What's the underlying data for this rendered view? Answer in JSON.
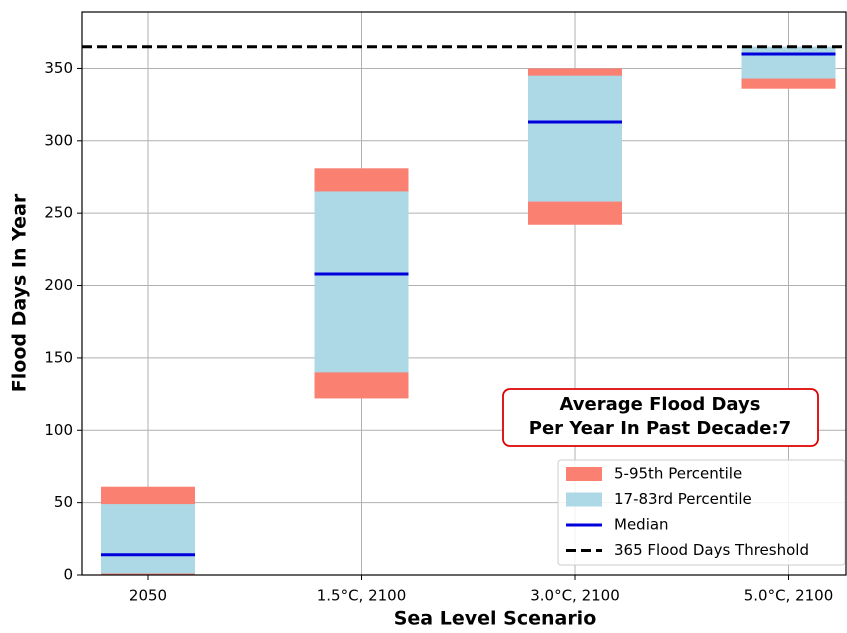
{
  "chart_data": {
    "type": "range",
    "xlabel": "Sea Level Scenario",
    "ylabel": "Flood Days In Year",
    "categories": [
      "2050",
      "1.5°C, 2100",
      "3.0°C, 2100",
      "5.0°C, 2100"
    ],
    "series": [
      {
        "name": "5-95th Percentile",
        "color": "#fa8072",
        "low": [
          0,
          122,
          242,
          336
        ],
        "high": [
          61,
          281,
          350,
          365
        ]
      },
      {
        "name": "17-83rd Percentile",
        "color": "#add8e6",
        "low": [
          1,
          140,
          258,
          343
        ],
        "high": [
          49,
          265,
          345,
          365
        ]
      },
      {
        "name": "Median",
        "color": "#0000dd",
        "values": [
          14,
          208,
          313,
          360
        ]
      }
    ],
    "threshold": {
      "name": "365 Flood Days Threshold",
      "value": 365,
      "color": "#000000"
    },
    "annotation": [
      "Average Flood Days",
      "Per Year In Past Decade:7"
    ],
    "ylim": [
      0,
      389
    ],
    "yticks": [
      0,
      50,
      100,
      150,
      200,
      250,
      300,
      350
    ],
    "grid": true,
    "legend": "lower right"
  }
}
